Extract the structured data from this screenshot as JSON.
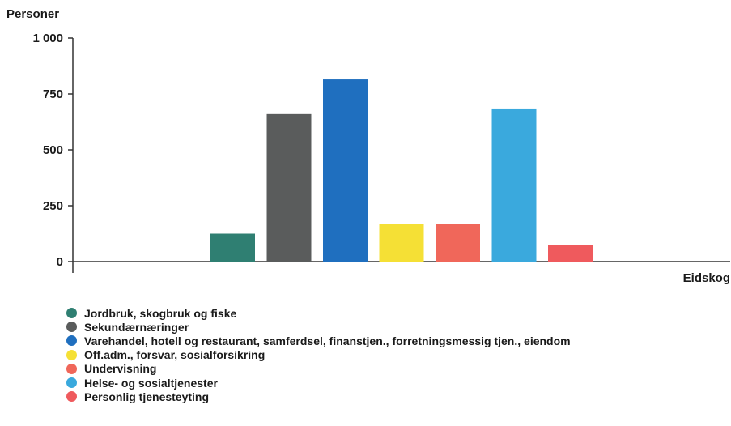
{
  "chart_data": {
    "type": "bar",
    "title": "",
    "ylabel": "Personer",
    "xlabel": "",
    "categories": [
      "Eidskog"
    ],
    "ylim": [
      0,
      1000
    ],
    "yticks": [
      0,
      250,
      500,
      750,
      1000
    ],
    "ytick_labels": [
      "0",
      "250",
      "500",
      "750",
      "1 000"
    ],
    "grid": false,
    "legend_position": "bottom-left",
    "series": [
      {
        "name": "Jordbruk, skogbruk og fiske",
        "values": [
          125
        ],
        "color": "#2f7f72"
      },
      {
        "name": "Sekundærnæringer",
        "values": [
          660
        ],
        "color": "#5a5c5c"
      },
      {
        "name": "Varehandel, hotell og restaurant, samferdsel, finanstjen., forretningsmessig tjen., eiendom",
        "values": [
          815
        ],
        "color": "#1f6fbf"
      },
      {
        "name": "Off.adm., forsvar, sosialforsikring",
        "values": [
          170
        ],
        "color": "#f5e035"
      },
      {
        "name": "Undervisning",
        "values": [
          168
        ],
        "color": "#f0675a"
      },
      {
        "name": "Helse- og sosialtjenester",
        "values": [
          685
        ],
        "color": "#3aa9dd"
      },
      {
        "name": "Personlig tjenesteyting",
        "values": [
          75
        ],
        "color": "#ef5a5d"
      }
    ]
  }
}
